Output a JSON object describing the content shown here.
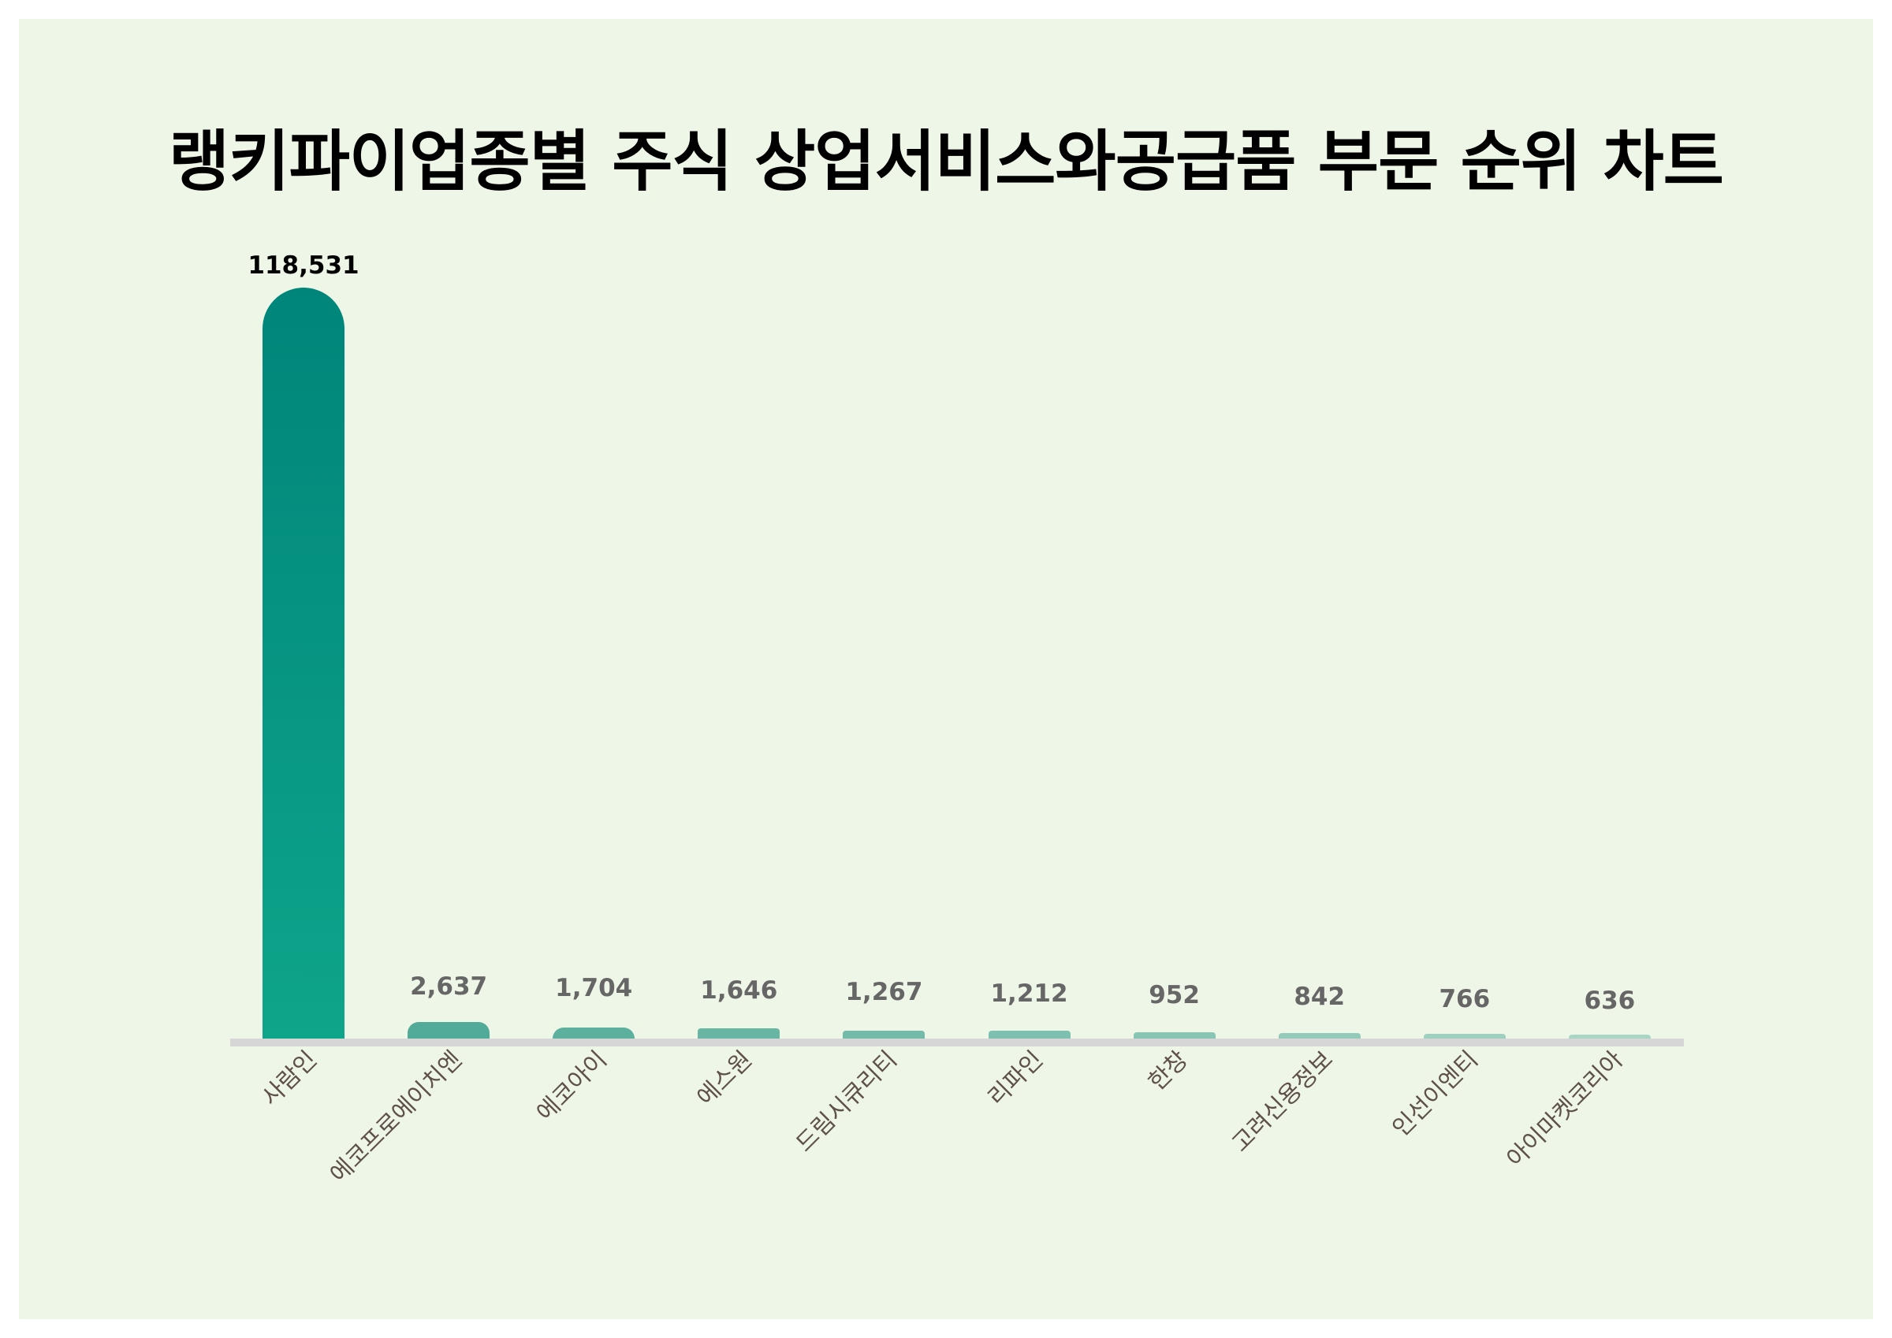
{
  "title": "랭키파이업종별 주식 상업서비스와공급품 부문 순위 차트",
  "colors": {
    "background_outer": "#FFFFFF",
    "background_panel": "#EEF6E8",
    "top_bar_gradient_start": "#00857A",
    "top_bar_gradient_end": "#0EA58A",
    "other_bars": "#52AA98",
    "baseline": "#D6D6D6",
    "value_label_top": "#000000",
    "value_label_other": "#666666",
    "category_label": "#5E504A"
  },
  "chart_data": {
    "type": "bar",
    "title": "랭키파이업종별 주식 상업서비스와공급품 부문 순위 차트",
    "xlabel": "",
    "ylabel": "",
    "categories": [
      "사람인",
      "에코프로에이치엔",
      "에코아이",
      "에스원",
      "드림시큐리티",
      "리파인",
      "한창",
      "고려신용정보",
      "인선이엔티",
      "아이마켓코리아"
    ],
    "values": [
      118531,
      2637,
      1704,
      1646,
      1267,
      1212,
      952,
      842,
      766,
      636
    ],
    "value_labels": [
      "118,531",
      "2,637",
      "1,704",
      "1,646",
      "1,267",
      "1,212",
      "952",
      "842",
      "766",
      "636"
    ],
    "ylim": [
      0,
      118531
    ],
    "grid": false,
    "legend": "none",
    "y_axis_visible": false,
    "x_label_rotation": -45
  }
}
